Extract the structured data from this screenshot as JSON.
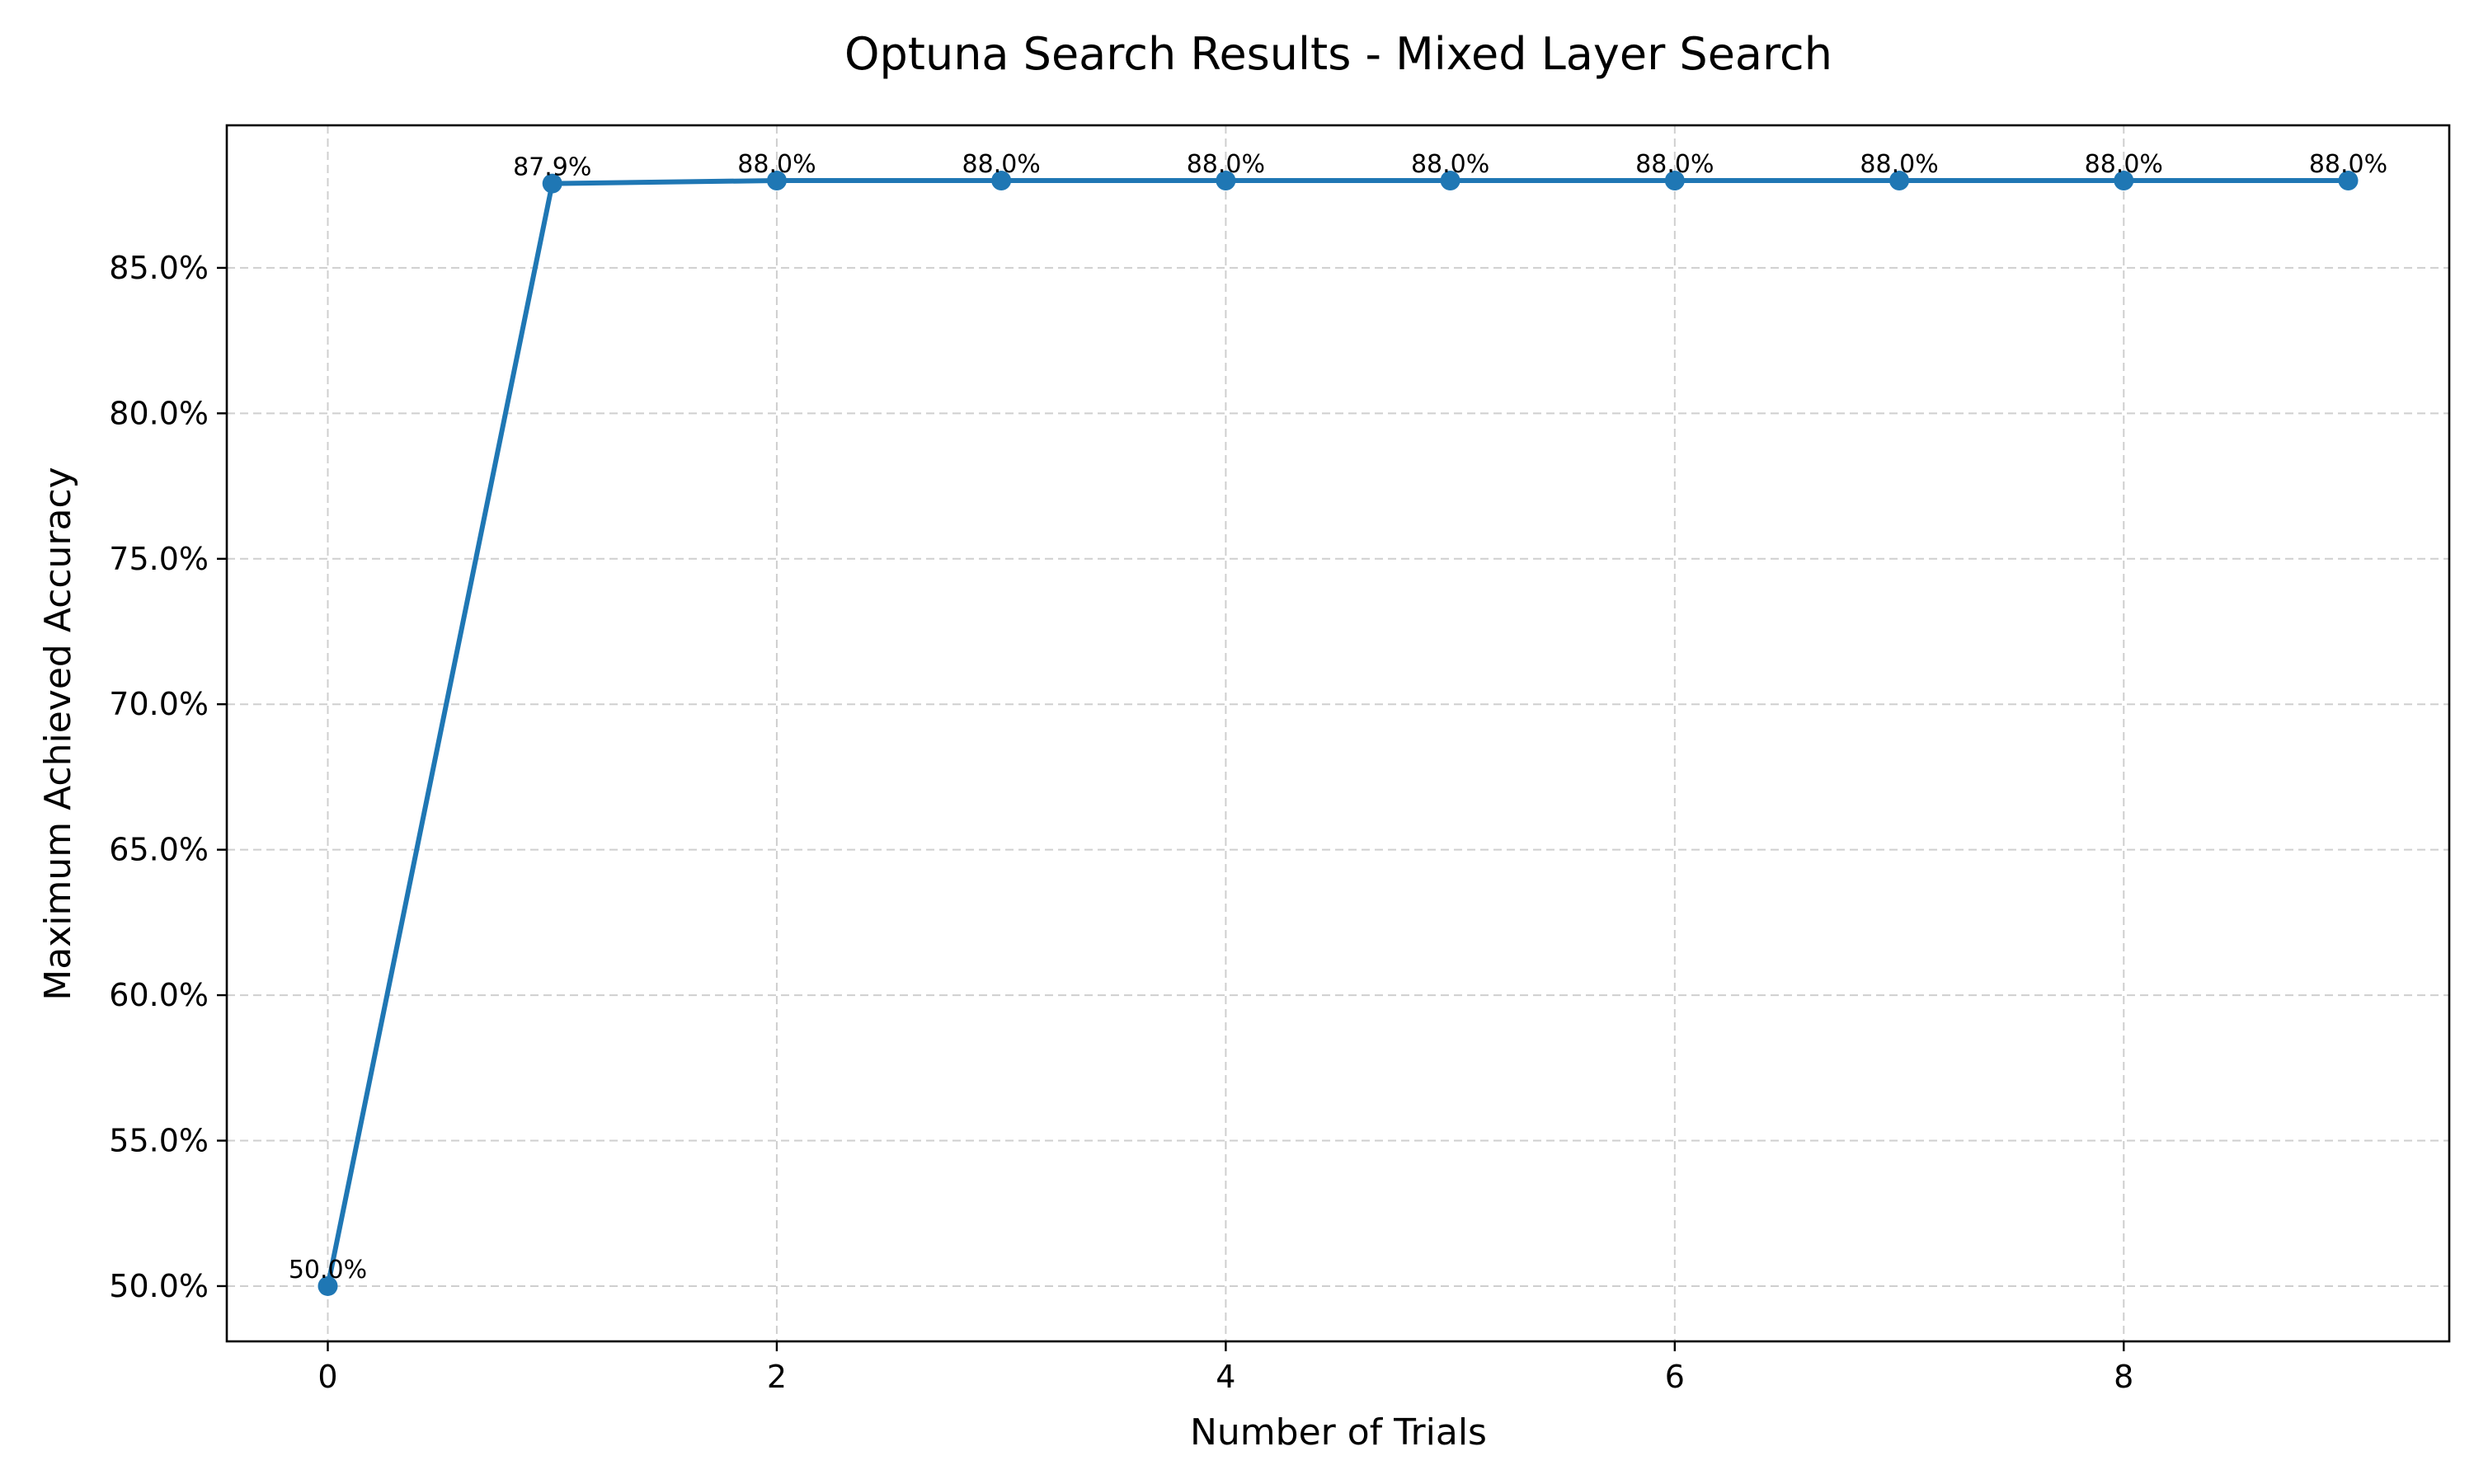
{
  "chart_data": {
    "type": "line",
    "title": "Optuna Search Results - Mixed Layer Search",
    "xlabel": "Number of Trials",
    "ylabel": "Maximum Achieved Accuracy",
    "x": [
      0,
      1,
      2,
      3,
      4,
      5,
      6,
      7,
      8,
      9
    ],
    "series": [
      {
        "values": [
          50.0,
          87.9,
          88.0,
          88.0,
          88.0,
          88.0,
          88.0,
          88.0,
          88.0,
          88.0
        ]
      }
    ],
    "data_labels": [
      "50.0%",
      "87.9%",
      "88.0%",
      "88.0%",
      "88.0%",
      "88.0%",
      "88.0%",
      "88.0%",
      "88.0%",
      "88.0%"
    ],
    "xticks": [
      0,
      2,
      4,
      6,
      8
    ],
    "xtick_labels": [
      "0",
      "2",
      "4",
      "6",
      "8"
    ],
    "yticks": [
      50,
      55,
      60,
      65,
      70,
      75,
      80,
      85
    ],
    "ytick_labels": [
      "50.0%",
      "55.0%",
      "60.0%",
      "65.0%",
      "70.0%",
      "75.0%",
      "80.0%",
      "85.0%"
    ],
    "xlim": [
      -0.45,
      9.45
    ],
    "ylim": [
      48.1,
      89.9
    ],
    "grid": true,
    "line_color": "#1f77b4"
  }
}
